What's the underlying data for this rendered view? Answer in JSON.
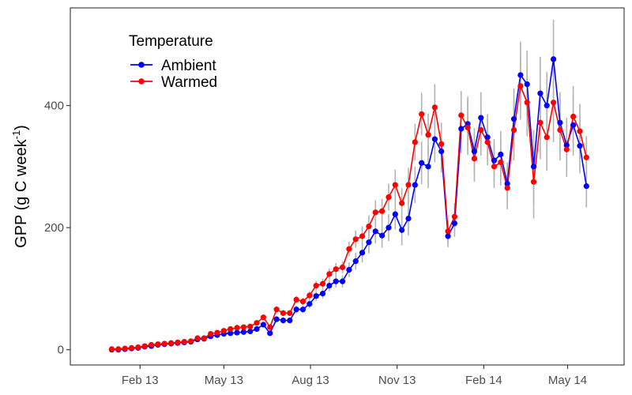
{
  "chart_data": {
    "type": "line",
    "ylabel": "GPP (g C week-1)",
    "ylabel_parts": {
      "main": "GPP (g C week",
      "sup": "-1",
      "close": ")"
    },
    "ylim": [
      -25,
      560
    ],
    "y_ticks": [
      0,
      200,
      400
    ],
    "x_ticks": [
      {
        "label": "Feb 13",
        "date": "2013-02-01"
      },
      {
        "label": "May 13",
        "date": "2013-05-01"
      },
      {
        "label": "Aug 13",
        "date": "2013-08-01"
      },
      {
        "label": "Nov 13",
        "date": "2013-11-01"
      },
      {
        "label": "Feb 14",
        "date": "2014-02-01"
      },
      {
        "label": "May 14",
        "date": "2014-05-01"
      }
    ],
    "xlim": [
      "2012-11-19",
      "2014-06-30"
    ],
    "grid": false,
    "legend": {
      "title": "Temperature",
      "position": "top-left"
    },
    "series": [
      {
        "name": "Ambient",
        "color": "#0000ff",
        "x": [
          "2013-01-02",
          "2013-01-09",
          "2013-01-16",
          "2013-01-23",
          "2013-01-30",
          "2013-02-06",
          "2013-02-13",
          "2013-02-20",
          "2013-02-27",
          "2013-03-06",
          "2013-03-13",
          "2013-03-20",
          "2013-03-27",
          "2013-04-03",
          "2013-04-10",
          "2013-04-17",
          "2013-04-24",
          "2013-05-01",
          "2013-05-08",
          "2013-05-15",
          "2013-05-22",
          "2013-05-29",
          "2013-06-05",
          "2013-06-12",
          "2013-06-19",
          "2013-06-26",
          "2013-07-03",
          "2013-07-10",
          "2013-07-17",
          "2013-07-24",
          "2013-07-31",
          "2013-08-07",
          "2013-08-14",
          "2013-08-21",
          "2013-08-28",
          "2013-09-04",
          "2013-09-11",
          "2013-09-18",
          "2013-09-25",
          "2013-10-02",
          "2013-10-09",
          "2013-10-16",
          "2013-10-23",
          "2013-10-30",
          "2013-11-06",
          "2013-11-13",
          "2013-11-20",
          "2013-11-27",
          "2013-12-04",
          "2013-12-11",
          "2013-12-18",
          "2013-12-25",
          "2014-01-01",
          "2014-01-08",
          "2014-01-15",
          "2014-01-22",
          "2014-01-29",
          "2014-02-05",
          "2014-02-12",
          "2014-02-19",
          "2014-02-26",
          "2014-03-05",
          "2014-03-12",
          "2014-03-19",
          "2014-03-26",
          "2014-04-02",
          "2014-04-09",
          "2014-04-16",
          "2014-04-23",
          "2014-04-30",
          "2014-05-07",
          "2014-05-14",
          "2014-05-21"
        ],
        "values": [
          0,
          0,
          1,
          2,
          3,
          5,
          6,
          8,
          9,
          10,
          11,
          12,
          13,
          17,
          18,
          22,
          24,
          26,
          27,
          28,
          29,
          30,
          34,
          41,
          27,
          50,
          48,
          48,
          66,
          66,
          75,
          88,
          92,
          105,
          112,
          112,
          131,
          145,
          159,
          176,
          194,
          187,
          200,
          222,
          196,
          215,
          270,
          306,
          300,
          345,
          325,
          186,
          207,
          362,
          370,
          325,
          380,
          348,
          310,
          320,
          272,
          378,
          450,
          435,
          300,
          420,
          400,
          476,
          372,
          335,
          368,
          334,
          268
        ],
        "err": [
          0,
          0,
          1,
          1,
          1,
          1,
          1,
          1,
          1,
          1,
          2,
          2,
          2,
          2,
          2,
          2,
          3,
          3,
          3,
          3,
          3,
          3,
          4,
          4,
          4,
          5,
          5,
          5,
          6,
          6,
          7,
          8,
          8,
          9,
          10,
          10,
          12,
          14,
          16,
          18,
          20,
          20,
          22,
          25,
          25,
          28,
          30,
          35,
          35,
          38,
          35,
          18,
          22,
          40,
          45,
          38,
          42,
          38,
          35,
          38,
          35,
          50,
          55,
          55,
          60,
          60,
          55,
          65,
          50,
          45,
          50,
          45,
          35
        ],
        "markers": [
          false,
          false,
          false,
          false,
          false,
          false,
          false,
          false,
          false,
          false,
          false,
          false,
          false,
          false,
          false,
          false,
          false,
          false,
          false,
          false,
          false,
          false,
          false,
          false,
          false,
          false,
          false,
          false,
          false,
          false,
          false,
          false,
          false,
          false,
          false,
          false,
          false,
          false,
          false,
          false,
          false,
          false,
          false,
          false,
          false,
          false,
          false,
          false,
          false,
          false,
          false,
          false,
          false,
          false,
          false,
          false,
          false,
          false,
          false,
          false,
          false,
          false,
          false,
          false,
          false,
          false,
          false,
          false,
          false,
          false,
          false,
          false,
          false
        ]
      },
      {
        "name": "Warmed",
        "color": "#ff0000",
        "x": [
          "2013-01-02",
          "2013-01-09",
          "2013-01-16",
          "2013-01-23",
          "2013-01-30",
          "2013-02-06",
          "2013-02-13",
          "2013-02-20",
          "2013-02-27",
          "2013-03-06",
          "2013-03-13",
          "2013-03-20",
          "2013-03-27",
          "2013-04-03",
          "2013-04-10",
          "2013-04-17",
          "2013-04-24",
          "2013-05-01",
          "2013-05-08",
          "2013-05-15",
          "2013-05-22",
          "2013-05-29",
          "2013-06-05",
          "2013-06-12",
          "2013-06-19",
          "2013-06-26",
          "2013-07-03",
          "2013-07-10",
          "2013-07-17",
          "2013-07-24",
          "2013-07-31",
          "2013-08-07",
          "2013-08-14",
          "2013-08-21",
          "2013-08-28",
          "2013-09-04",
          "2013-09-11",
          "2013-09-18",
          "2013-09-25",
          "2013-10-02",
          "2013-10-09",
          "2013-10-16",
          "2013-10-23",
          "2013-10-30",
          "2013-11-06",
          "2013-11-13",
          "2013-11-20",
          "2013-11-27",
          "2013-12-04",
          "2013-12-11",
          "2013-12-18",
          "2013-12-25",
          "2014-01-01",
          "2014-01-08",
          "2014-01-15",
          "2014-01-22",
          "2014-01-29",
          "2014-02-05",
          "2014-02-12",
          "2014-02-19",
          "2014-02-26",
          "2014-03-05",
          "2014-03-12",
          "2014-03-19",
          "2014-03-26",
          "2014-04-02",
          "2014-04-09",
          "2014-04-16",
          "2014-04-23",
          "2014-04-30",
          "2014-05-07",
          "2014-05-14",
          "2014-05-21"
        ],
        "values": [
          1,
          1,
          2,
          3,
          4,
          6,
          8,
          9,
          10,
          11,
          12,
          13,
          14,
          19,
          19,
          26,
          28,
          31,
          34,
          36,
          37,
          38,
          44,
          53,
          37,
          66,
          60,
          60,
          82,
          79,
          89,
          105,
          108,
          124,
          132,
          135,
          165,
          181,
          186,
          202,
          225,
          227,
          250,
          270,
          240,
          270,
          340,
          386,
          352,
          397,
          337,
          194,
          218,
          384,
          364,
          313,
          360,
          340,
          300,
          307,
          265,
          360,
          432,
          405,
          275,
          372,
          348,
          405,
          360,
          328,
          382,
          358,
          315
        ],
        "err": [
          0,
          0,
          1,
          1,
          1,
          1,
          1,
          1,
          1,
          1,
          2,
          2,
          2,
          2,
          2,
          2,
          3,
          3,
          3,
          3,
          3,
          3,
          4,
          4,
          4,
          5,
          5,
          5,
          6,
          6,
          7,
          8,
          8,
          9,
          10,
          10,
          12,
          14,
          16,
          18,
          20,
          20,
          22,
          25,
          25,
          28,
          30,
          35,
          35,
          38,
          35,
          18,
          22,
          40,
          45,
          38,
          42,
          38,
          35,
          38,
          35,
          50,
          55,
          55,
          60,
          60,
          55,
          65,
          50,
          45,
          50,
          45,
          35
        ]
      }
    ]
  }
}
